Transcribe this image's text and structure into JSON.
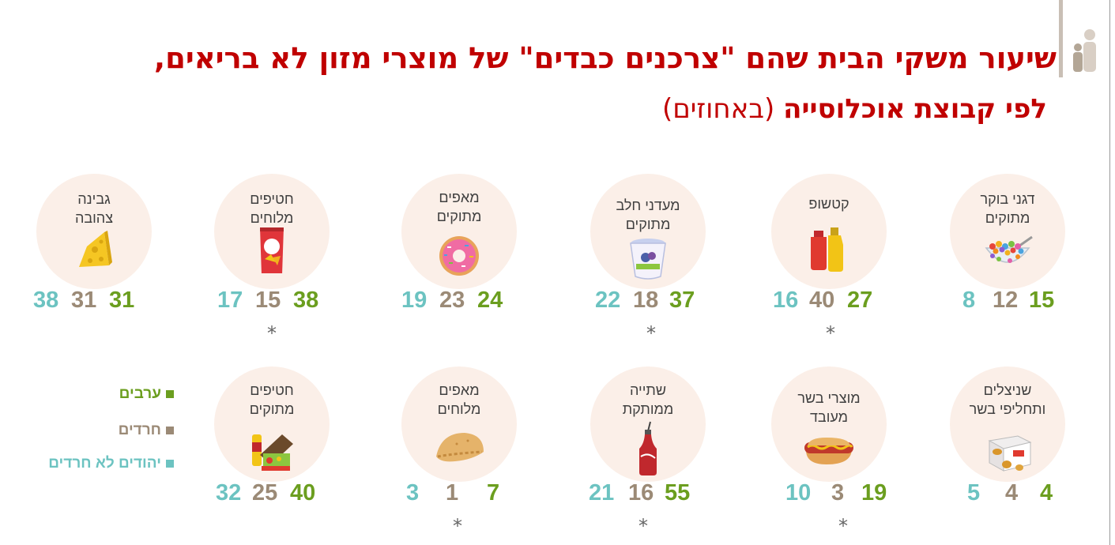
{
  "title": {
    "line1": "שיעור משקי הבית שהם \"צרכנים כבדים\" של מוצרי מזון לא בריאים,",
    "line2_bold": "לפי קבוצת אוכלוסייה",
    "line2_normal": "(באחוזים)"
  },
  "colors": {
    "title": "#c00000",
    "arabs": "#6b9e1f",
    "haredim": "#9b8a76",
    "non_haredi_jews": "#6cc3c1",
    "circle_bg": "#fbefe8"
  },
  "legend": {
    "arabs": "ערבים",
    "haredim": "חרדים",
    "non_haredi_jews": "יהודים לא חרדים"
  },
  "categories": [
    {
      "label_line1": "דגני בוקר",
      "label_line2": "מתוקים",
      "icon": "cereal-bowl-icon",
      "arabs": "15",
      "haredim": "12",
      "jews": "8",
      "star": ""
    },
    {
      "label_line1": "קטשופ",
      "label_line2": "",
      "icon": "ketchup-mustard-icon",
      "arabs": "27",
      "haredim": "40",
      "jews": "16",
      "star": "*"
    },
    {
      "label_line1": "מעדני חלב",
      "label_line2": "מתוקים",
      "icon": "yogurt-cup-icon",
      "arabs": "37",
      "haredim": "18",
      "jews": "22",
      "star": "*"
    },
    {
      "label_line1": "מאפים",
      "label_line2": "מתוקים",
      "icon": "donut-icon",
      "arabs": "24",
      "haredim": "23",
      "jews": "19",
      "star": ""
    },
    {
      "label_line1": "חטיפים",
      "label_line2": "מלוחים",
      "icon": "chips-bag-icon",
      "arabs": "38",
      "haredim": "15",
      "jews": "17",
      "star": "*"
    },
    {
      "label_line1": "גבינה",
      "label_line2": "צהובה",
      "icon": "cheese-icon",
      "arabs": "31",
      "haredim": "31",
      "jews": "38",
      "star": ""
    },
    {
      "label_line1": "שניצלים",
      "label_line2": "ותחליפי בשר",
      "icon": "nuggets-box-icon",
      "arabs": "4",
      "haredim": "4",
      "jews": "5",
      "star": ""
    },
    {
      "label_line1": "מוצרי בשר",
      "label_line2": "מעובד",
      "icon": "hotdog-icon",
      "arabs": "19",
      "haredim": "3",
      "jews": "10",
      "star": "*"
    },
    {
      "label_line1": "שתייה",
      "label_line2": "ממותקת",
      "icon": "soda-bottle-icon",
      "arabs": "55",
      "haredim": "16",
      "jews": "21",
      "star": "*"
    },
    {
      "label_line1": "מאפים",
      "label_line2": "מלוחים",
      "icon": "pastry-icon",
      "arabs": "7",
      "haredim": "1",
      "jews": "3",
      "star": "*"
    },
    {
      "label_line1": "חטיפים",
      "label_line2": "מתוקים",
      "icon": "sweets-icon",
      "arabs": "40",
      "haredim": "25",
      "jews": "32",
      "star": ""
    }
  ]
}
